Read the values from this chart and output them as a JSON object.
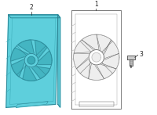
{
  "background_color": "#ffffff",
  "fig_width": 2.0,
  "fig_height": 1.47,
  "dpi": 100,
  "part1_label": "1",
  "part2_label": "2",
  "part3_label": "3",
  "fill_color": "#5ecfdc",
  "outline_color": "#2a8090",
  "inner_outline": "#3aabb8",
  "right_outline": "#666666",
  "right_outline2": "#aaaaaa",
  "bolt_fill": "#cccccc",
  "bolt_outline": "#555555"
}
